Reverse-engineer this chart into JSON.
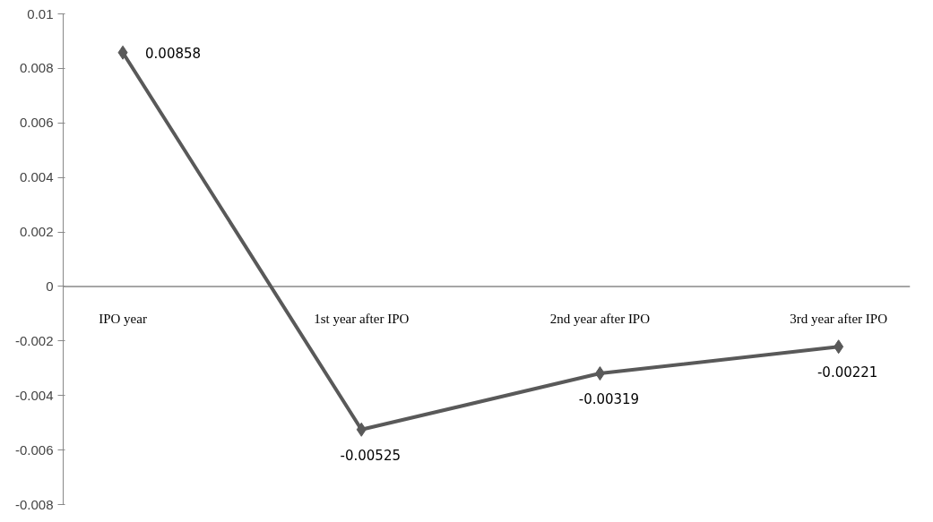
{
  "chart_data": {
    "type": "line",
    "categories": [
      "IPO year",
      "1st year after IPO",
      "2nd year after IPO",
      "3rd year after IPO"
    ],
    "series": [
      {
        "color": "#595959",
        "values": [
          0.00858,
          -0.00525,
          -0.00319,
          -0.00221
        ]
      }
    ],
    "ylim": [
      -0.008,
      0.01
    ],
    "yticks": [
      -0.008,
      -0.006,
      -0.004,
      -0.002,
      0,
      0.002,
      0.004,
      0.006,
      0.008,
      0.01
    ],
    "marker": "diamond",
    "line_style": "solid",
    "grid": false,
    "data_labels": true
  }
}
